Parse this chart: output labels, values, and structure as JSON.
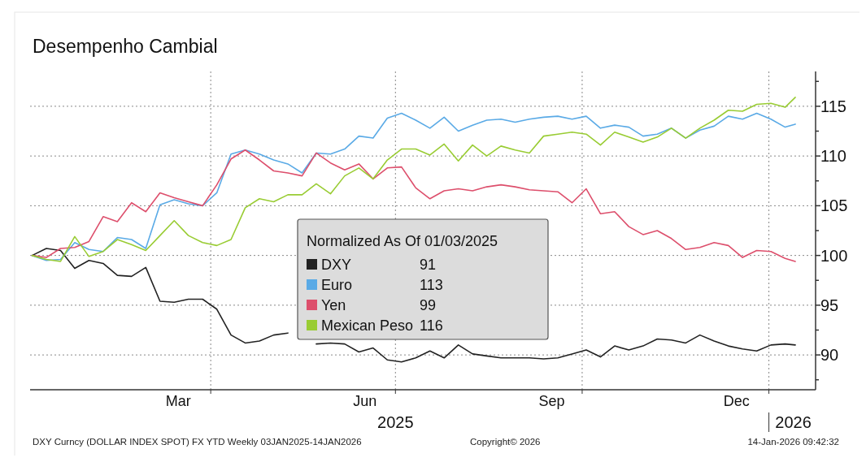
{
  "chart_data": {
    "type": "line",
    "title": "Desempenho Cambial",
    "legend_title": "Normalized As Of 01/03/2025",
    "legend": "center",
    "grid": true,
    "marker": "none",
    "line_style": "solid",
    "x": [
      "2025-01-03",
      "2025-01-10",
      "2025-01-17",
      "2025-01-24",
      "2025-01-31",
      "2025-02-07",
      "2025-02-14",
      "2025-02-21",
      "2025-02-28",
      "2025-03-07",
      "2025-03-14",
      "2025-03-21",
      "2025-03-28",
      "2025-04-04",
      "2025-04-11",
      "2025-04-18",
      "2025-04-25",
      "2025-05-02",
      "2025-05-09",
      "2025-05-16",
      "2025-05-23",
      "2025-05-30",
      "2025-06-06",
      "2025-06-13",
      "2025-06-20",
      "2025-06-27",
      "2025-07-04",
      "2025-07-11",
      "2025-07-18",
      "2025-07-25",
      "2025-08-01",
      "2025-08-08",
      "2025-08-15",
      "2025-08-22",
      "2025-08-29",
      "2025-09-05",
      "2025-09-12",
      "2025-09-19",
      "2025-09-26",
      "2025-10-03",
      "2025-10-10",
      "2025-10-17",
      "2025-10-24",
      "2025-10-31",
      "2025-11-07",
      "2025-11-14",
      "2025-11-21",
      "2025-11-28",
      "2025-12-05",
      "2025-12-12",
      "2025-12-19",
      "2025-12-26",
      "2026-01-02",
      "2026-01-09",
      "2026-01-14"
    ],
    "xlim": [
      "2025-01-02",
      "2026-01-24"
    ],
    "xticks": [
      {
        "value": "2025-03-16",
        "label": "Mar"
      },
      {
        "value": "2025-06-16",
        "label": "Jun"
      },
      {
        "value": "2025-09-16",
        "label": "Sep"
      },
      {
        "value": "2025-12-16",
        "label": "Dec"
      },
      {
        "value": "2025-04-01",
        "label": null
      },
      {
        "value": "2025-07-01",
        "label": null
      },
      {
        "value": "2025-10-01",
        "label": null
      },
      {
        "value": "2026-01-01",
        "label": null
      }
    ],
    "ylim": [
      86.5,
      118.5
    ],
    "yticks": [
      90,
      95,
      100,
      105,
      110,
      115,
      {
        "value": 87.5,
        "label": null
      },
      {
        "value": 92.5,
        "label": null
      },
      {
        "value": 97.5,
        "label": null
      },
      {
        "value": 102.5,
        "label": null
      },
      {
        "value": 107.5,
        "label": null
      },
      {
        "value": 112.5,
        "label": null
      },
      {
        "value": 117.5,
        "label": null
      }
    ],
    "series": [
      {
        "name": "DXY",
        "color": "#222222",
        "values": [
          100,
          100.7,
          100.5,
          98.7,
          99.5,
          99.2,
          98.0,
          97.9,
          98.8,
          95.4,
          95.3,
          95.6,
          95.6,
          94.6,
          92.0,
          91.2,
          91.4,
          92.0,
          92.2,
          null,
          91.1,
          91.2,
          91.1,
          90.3,
          90.7,
          89.5,
          89.3,
          89.7,
          90.4,
          89.7,
          91.0,
          90.1,
          89.9,
          89.7,
          89.7,
          89.7,
          89.6,
          89.7,
          90.1,
          90.5,
          89.8,
          90.9,
          90.5,
          90.9,
          91.6,
          91.5,
          91.2,
          92.0,
          91.4,
          90.9,
          90.6,
          90.4,
          91.0,
          91.1,
          91.0
        ]
      },
      {
        "name": "Euro",
        "color": "#5aaae6",
        "values": [
          100,
          99.5,
          99.6,
          101.3,
          100.6,
          100.4,
          101.8,
          101.6,
          100.7,
          105.1,
          105.6,
          105.2,
          105.0,
          106.3,
          110.2,
          110.6,
          110.2,
          109.6,
          109.2,
          108.3,
          110.3,
          110.2,
          110.7,
          112.0,
          111.8,
          113.8,
          114.3,
          113.6,
          112.8,
          113.9,
          112.5,
          113.1,
          113.6,
          113.7,
          113.4,
          113.7,
          113.9,
          114.0,
          113.7,
          114.0,
          112.8,
          113.1,
          112.9,
          112.0,
          112.2,
          112.8,
          111.8,
          112.6,
          113.0,
          114.0,
          113.7,
          114.3,
          113.7,
          112.9,
          113.2
        ]
      },
      {
        "name": "Yen",
        "color": "#dd4f6c",
        "values": [
          100,
          99.8,
          100.7,
          100.8,
          101.4,
          103.9,
          103.4,
          105.3,
          104.4,
          106.3,
          105.8,
          105.4,
          105.0,
          107.1,
          109.7,
          110.6,
          109.6,
          108.5,
          108.3,
          108.0,
          110.3,
          109.3,
          108.6,
          109.2,
          107.7,
          108.8,
          108.9,
          106.8,
          105.7,
          106.5,
          106.7,
          106.5,
          106.9,
          107.1,
          106.9,
          106.6,
          106.5,
          106.4,
          105.3,
          106.7,
          104.2,
          104.4,
          102.9,
          102.1,
          102.5,
          101.7,
          100.6,
          100.8,
          101.3,
          101.0,
          99.8,
          100.5,
          100.4,
          99.7,
          99.4
        ]
      },
      {
        "name": "Mexican Peso",
        "color": "#99cc33",
        "values": [
          100,
          99.6,
          99.4,
          101.9,
          99.9,
          100.4,
          101.6,
          101.1,
          100.5,
          102.0,
          103.5,
          102.0,
          101.3,
          101.0,
          101.6,
          104.8,
          105.7,
          105.4,
          106.1,
          106.1,
          107.2,
          106.2,
          108.0,
          108.8,
          107.7,
          109.6,
          110.7,
          110.7,
          110.1,
          111.2,
          109.5,
          111.1,
          110.0,
          111.0,
          110.6,
          110.3,
          112.0,
          112.2,
          112.4,
          112.2,
          111.1,
          112.4,
          111.9,
          111.4,
          111.9,
          112.8,
          111.8,
          112.8,
          113.6,
          114.6,
          114.5,
          115.2,
          115.3,
          114.9,
          115.9
        ]
      }
    ],
    "annotations": [
      "2025",
      "2026",
      "DXY Curncy (DOLLAR INDEX SPOT) FX YTD Weekly 03JAN2025-14JAN2026",
      "Copyright© 2026",
      "14-Jan-2026 09:42:32",
      "91",
      "113",
      "99",
      "116"
    ]
  }
}
